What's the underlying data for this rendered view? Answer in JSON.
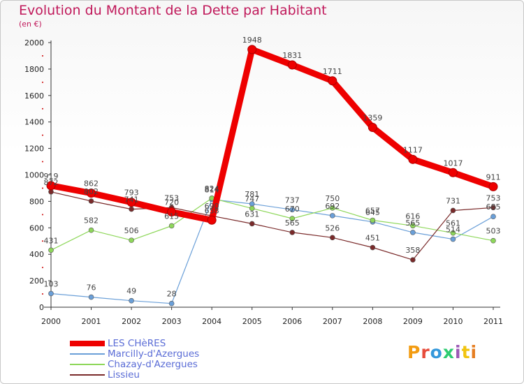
{
  "title": "Evolution du Montant de la Dette par Habitant",
  "subtitle": "(en €)",
  "logo": {
    "text": "Proxiti",
    "colors": [
      "#f39c12",
      "#e74c3c",
      "#3498db",
      "#2ecc71",
      "#9b59b6",
      "#f1c40f",
      "#e67e22"
    ]
  },
  "chart_data": {
    "type": "line",
    "x": [
      "2000",
      "2001",
      "2002",
      "2003",
      "2004",
      "2005",
      "2006",
      "2007",
      "2008",
      "2009",
      "2010",
      "2011"
    ],
    "ylim": [
      0,
      2000
    ],
    "yticks": [
      0,
      200,
      400,
      600,
      800,
      1000,
      1200,
      1400,
      1600,
      1800,
      2000
    ],
    "grid": false,
    "legend": "bottom-left",
    "series": [
      {
        "name": "LES CHèRES",
        "color": "#ee0000",
        "width": 9,
        "values": [
          919,
          862,
          793,
          720,
          658,
          1948,
          1831,
          1711,
          1359,
          1117,
          1017,
          911
        ]
      },
      {
        "name": "Marcilly-d'Azergues",
        "color": "#6a9fd8",
        "width": 1.2,
        "values": [
          103,
          76,
          49,
          28,
          814,
          781,
          737,
          692,
          645,
          565,
          514,
          685
        ]
      },
      {
        "name": "Chazay-d'Azergues",
        "color": "#8ed75a",
        "width": 1.2,
        "values": [
          431,
          582,
          506,
          615,
          824,
          747,
          670,
          750,
          657,
          616,
          561,
          503
        ]
      },
      {
        "name": "Lissieu",
        "color": "#7a2a2a",
        "width": 1.2,
        "values": [
          872,
          802,
          741,
          753,
          690,
          631,
          565,
          526,
          451,
          358,
          731,
          753
        ]
      }
    ]
  }
}
